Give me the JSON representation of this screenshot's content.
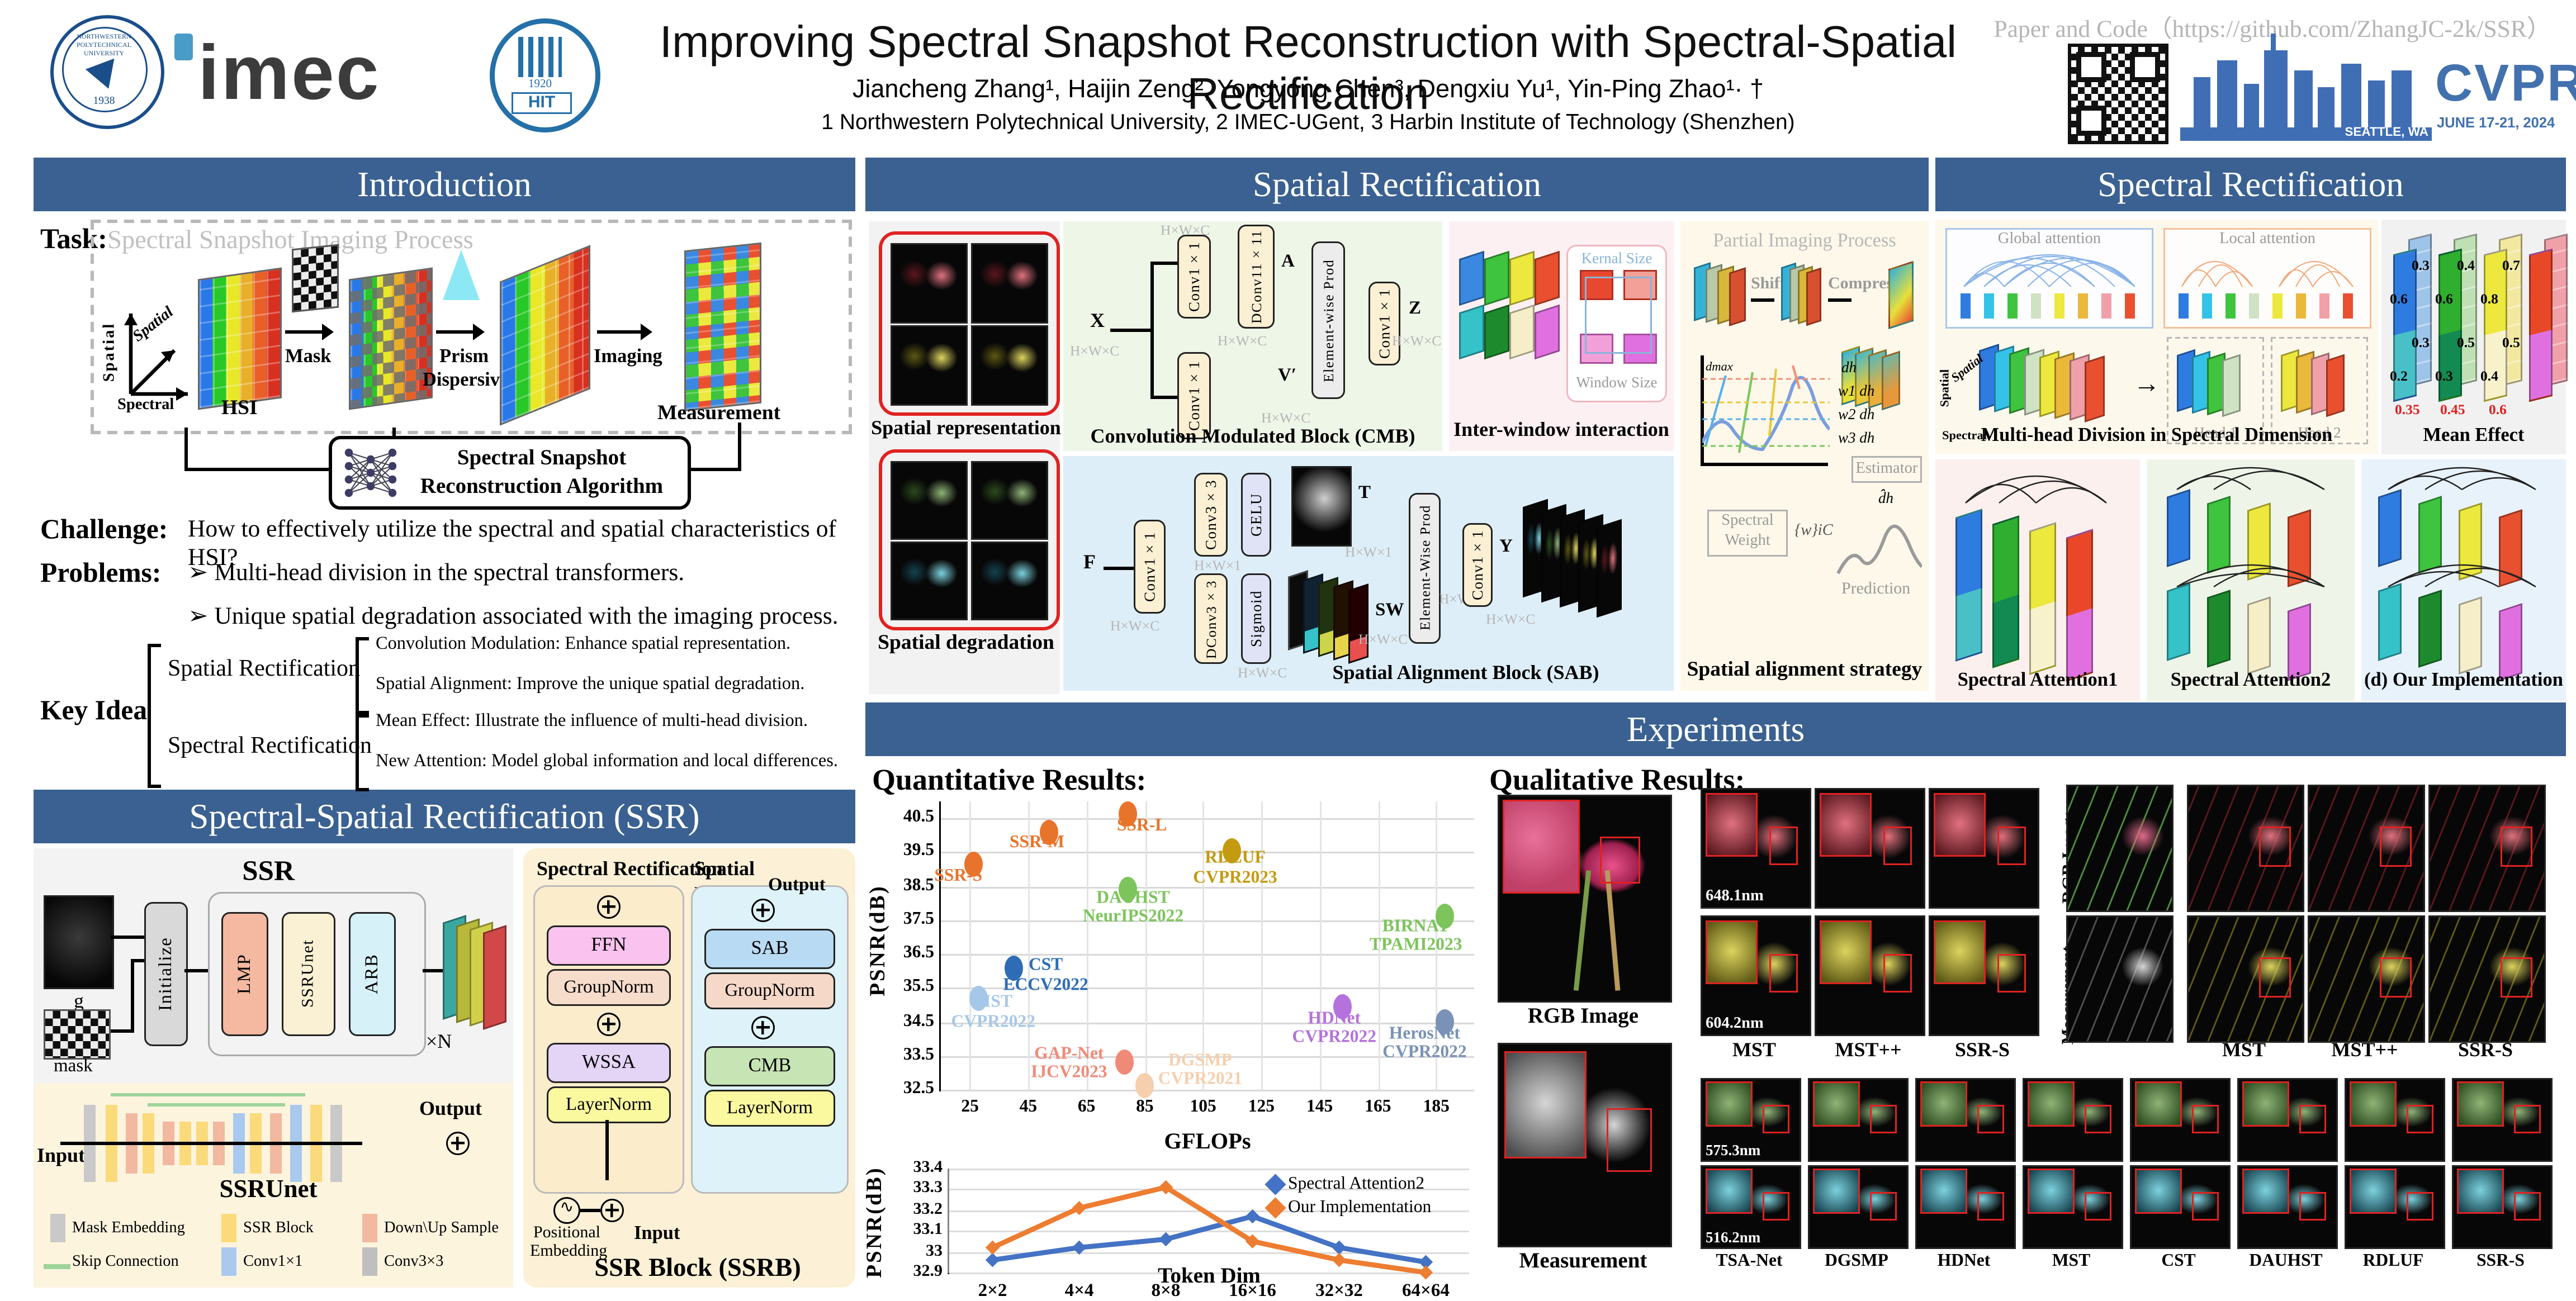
{
  "header": {
    "title": "Improving Spectral Snapshot Reconstruction with Spectral-Spatial Rectification",
    "authors": "Jiancheng Zhang¹, Haijin Zeng², Yongyong Chen³, Dengxiu Yu¹, Yin-Ping Zhao¹· †",
    "affiliations": "1 Northwestern Polytechnical University, 2 IMEC-UGent, 3 Harbin Institute of Technology (Shenzhen)",
    "paper_code": "Paper and Code（https://github.com/ZhangJC-2k/SSR）",
    "logo_npu_text": "NORTHWESTERN POLYTECHNICAL UNIVERSITY",
    "logo_npu_year": "1938",
    "logo_imec": "imec",
    "logo_hit": "HIT",
    "logo_hit_year": "1920",
    "cvpr_name": "CVPR",
    "cvpr_location": "SEATTLE, WA",
    "cvpr_dates": "JUNE 17-21, 2024"
  },
  "sections": {
    "introduction": "Introduction",
    "spatial": "Spatial Rectification",
    "spectral": "Spectral Rectification",
    "ssr": "Spectral-Spatial Rectification (SSR)",
    "experiments": "Experiments"
  },
  "intro": {
    "task_label": "Task:",
    "box_title": "Spectral Snapshot Imaging Process",
    "axis_spatial1": "Spatial",
    "axis_spatial2": "Spatial",
    "axis_spectral": "Spectral",
    "hsi": "HSI",
    "mask": "Mask",
    "prism1": "Prism",
    "prism2": "Dispersive",
    "imaging": "Imaging",
    "measurement": "Measurement",
    "algo1": "Spectral Snapshot",
    "algo2": "Reconstruction Algorithm",
    "challenge_label": "Challenge:",
    "challenge": "How to effectively utilize the spectral and spatial characteristics of  HSI?",
    "problems_label": "Problems:",
    "problem1": "➢  Multi-head division in the spectral transformers.",
    "problem2": "➢  Unique spatial degradation associated with the imaging process.",
    "keyidea_label": "Key Idea",
    "branch1": "Spatial Rectification",
    "branch1_item1": "Convolution Modulation: Enhance spatial representation.",
    "branch1_item2": "Spatial Alignment: Improve the unique spatial degradation.",
    "branch2": "Spectral Rectification",
    "branch2_item1": "Mean Effect: Illustrate the influence of multi-head division.",
    "branch2_item2": "New Attention: Model global information and local differences."
  },
  "ssr": {
    "title": "SSR",
    "g": "g",
    "mask": "mask",
    "initialize": "Initialize",
    "lmp": "LMP",
    "ssrunet": "SSRUnet",
    "arb": "ARB",
    "xn": "×N",
    "unet_caption": "SSRUnet",
    "input": "Input",
    "output": "Output",
    "legend": [
      {
        "label": "Mask Embedding",
        "color": "#c9c9c9"
      },
      {
        "label": "SSR Block",
        "color": "#fada7a"
      },
      {
        "label": "Down\\Up Sample",
        "color": "#f2b8a0"
      },
      {
        "label": "Skip Connection",
        "color": "#9ed49a"
      },
      {
        "label": "Conv1×1",
        "color": "#a9c9ee"
      },
      {
        "label": "Conv3×3",
        "color": "#bfbfbf"
      }
    ],
    "ssrb": {
      "left_title": "Spectral Rectification",
      "right_title": "Spatial Rectification",
      "ffn": "FFN",
      "groupnorm_l": "GroupNorm",
      "wssa": "WSSA",
      "layernorm_l": "LayerNorm",
      "sab": "SAB",
      "groupnorm_r": "GroupNorm",
      "cmb": "CMB",
      "layernorm_r": "LayerNorm",
      "positional1": "Positional",
      "positional2": "Embedding",
      "input": "Input",
      "output": "Output",
      "caption": "SSR Block (SSRB)"
    }
  },
  "spatial_rect": {
    "representation": "Spatial representation",
    "degradation": "Spatial degradation",
    "cmb": {
      "x": "X",
      "conv_a": "Conv1×1",
      "conv_b": "Conv1×1",
      "dconv": "DConv11×11",
      "a": "A",
      "v": "V′",
      "ewp": "Element-wise Prod",
      "conv_out": "Conv1×1",
      "z": "Z",
      "dim": "H×W×C",
      "caption": "Convolution Modulated Block (CMB)"
    },
    "iw": {
      "kernel": "Kernal Size",
      "window": "Window Size",
      "caption": "Inter-window interaction"
    },
    "sab": {
      "f": "F",
      "conv1": "Conv1×1",
      "conv3": "Conv3×3",
      "gelu": "GELU",
      "t": "T",
      "dconv3": "DConv3×3",
      "sigmoid": "Sigmoid",
      "sw": "SW",
      "ewp": "Element-Wise Prod",
      "conv_out": "Conv1×1",
      "y": "Y",
      "dim_c": "H×W×C",
      "dim_1": "H×W×1",
      "caption": "Spatial Alignment Block (SAB)"
    },
    "pip": {
      "title": "Partial Imaging Process",
      "shift": "Shift",
      "compress": "Compress",
      "dmax": "dmax",
      "dh": "dh",
      "w1": "w1 dh",
      "w2": "w2 dh",
      "w3": "w3 dh",
      "estimator": "Estimator",
      "dhat": "d̂h",
      "weight1": "Spectral",
      "weight2": "Weight",
      "wset": "{w}iC",
      "prediction": "Prediction",
      "caption": "Spatial alignment strategy"
    }
  },
  "spectral_rect": {
    "global_attention": "Global attention",
    "local_attention": "Local attention",
    "head1": "Head 1",
    "head2": "Head 2",
    "axis_spatial1": "Spatial",
    "axis_spatial2": "Spatial",
    "axis_spectral": "Spectral",
    "division_caption": "Multi-head Division in Spectral Dimension",
    "mean_caption": "Mean Effect",
    "mean": {
      "cols": [
        {
          "v1": "0.3",
          "v2": "0.6",
          "v3": "0.3",
          "v4": "0.2",
          "mean": "0.35"
        },
        {
          "v1": "0.4",
          "v2": "0.6",
          "v3": "0.5",
          "v4": "0.3",
          "mean": "0.45"
        },
        {
          "v1": "0.7",
          "v2": "0.8",
          "v3": "0.5",
          "v4": "0.4",
          "mean": "0.6"
        }
      ]
    },
    "panels": [
      "Spectral Attention1",
      "Spectral Attention2",
      "(d) Our Implementation"
    ]
  },
  "experiments": {
    "quant_label": "Quantitative Results:",
    "qual_label": "Qualitative Results:",
    "rgb_caption": "RGB Image",
    "measurement_caption": "Measurement",
    "rgb_vertical": "RGB Image",
    "measurement_vertical": "Measurement",
    "wl_648": "648.1nm",
    "wl_604": "604.2nm",
    "wl_575": "575.3nm",
    "wl_516": "516.2nm",
    "top_methods": [
      "MST",
      "MST++",
      "SSR-S"
    ],
    "right_methods": [
      "MST",
      "MST++",
      "SSR-S"
    ],
    "bottom_methods": [
      "TSA-Net",
      "DGSMP",
      "HDNet",
      "MST",
      "CST",
      "DAUHST",
      "RDLUF",
      "SSR-S"
    ]
  },
  "chart_data": [
    {
      "type": "scatter",
      "title": "Quantitative Results",
      "xlabel": "GFLOPs",
      "ylabel": "PSNR(dB)",
      "xlim": [
        15,
        198
      ],
      "ylim": [
        32.5,
        41.0
      ],
      "xticks": [
        25,
        45,
        65,
        85,
        105,
        125,
        145,
        165,
        185
      ],
      "yticks": [
        32.5,
        33.5,
        34.5,
        35.5,
        36.5,
        37.5,
        38.5,
        39.5,
        40.5
      ],
      "grid": true,
      "points": [
        {
          "name": "SSR-S",
          "venue": "",
          "x": 26,
          "y": 39.15,
          "color": "#e8742b",
          "label": [
            21,
            38.8
          ]
        },
        {
          "name": "SSR-M",
          "venue": "",
          "x": 52,
          "y": 40.1,
          "color": "#e8742b",
          "label": [
            48,
            39.75
          ]
        },
        {
          "name": "SSR-L",
          "venue": "",
          "x": 79,
          "y": 40.65,
          "color": "#e8742b",
          "label": [
            84,
            40.25
          ]
        },
        {
          "name": "RDLUF",
          "venue": "CVPR2023",
          "x": 115,
          "y": 39.55,
          "color": "#c49a10",
          "label": [
            116,
            39.0
          ]
        },
        {
          "name": "DAUHST",
          "venue": "NeurIPS2022",
          "x": 79,
          "y": 38.4,
          "color": "#7dc45c",
          "label": [
            81,
            37.85
          ]
        },
        {
          "name": "BIRNAT",
          "venue": "TPAMI2023",
          "x": 188,
          "y": 37.6,
          "color": "#7dc45c",
          "label": [
            178,
            37.0
          ]
        },
        {
          "name": "CST",
          "venue": "ECCV2022",
          "x": 40,
          "y": 36.1,
          "color": "#2e6cb5",
          "label": [
            51,
            35.85
          ]
        },
        {
          "name": "MST",
          "venue": "CVPR2022",
          "x": 28,
          "y": 35.2,
          "color": "#a6c8e8",
          "label": [
            33,
            34.75
          ]
        },
        {
          "name": "GAP-Net",
          "venue": "IJCV2023",
          "x": 78,
          "y": 33.3,
          "color": "#f08a78",
          "label": [
            59,
            33.25
          ]
        },
        {
          "name": "DGSMP",
          "venue": "CVPR2021",
          "x": 85,
          "y": 32.62,
          "color": "#f6cfae",
          "label": [
            104,
            33.05
          ]
        },
        {
          "name": "HDNet",
          "venue": "CVPR2022",
          "x": 153,
          "y": 34.95,
          "color": "#b472dc",
          "label": [
            150,
            34.3
          ]
        },
        {
          "name": "HerosNet",
          "venue": "CVPR2022",
          "x": 188,
          "y": 34.5,
          "color": "#7a92b5",
          "label": [
            181,
            33.85
          ]
        }
      ]
    },
    {
      "type": "line",
      "xlabel": "Token Dim",
      "ylabel": "PSNR(dB)",
      "categories": [
        "2×2",
        "4×4",
        "8×8",
        "16×16",
        "32×32",
        "64×64"
      ],
      "ylim": [
        32.9,
        33.4
      ],
      "yticks": [
        32.9,
        33,
        33.1,
        33.2,
        33.3,
        33.4
      ],
      "grid": true,
      "legend_position": "top-right",
      "series": [
        {
          "name": "Spectral Attention2",
          "color": "#4472c4",
          "values": [
            32.96,
            33.02,
            33.06,
            33.17,
            33.02,
            32.95
          ]
        },
        {
          "name": "Our Implementation",
          "color": "#ed7d31",
          "values": [
            33.02,
            33.21,
            33.31,
            33.05,
            32.96,
            32.9
          ]
        }
      ]
    }
  ]
}
